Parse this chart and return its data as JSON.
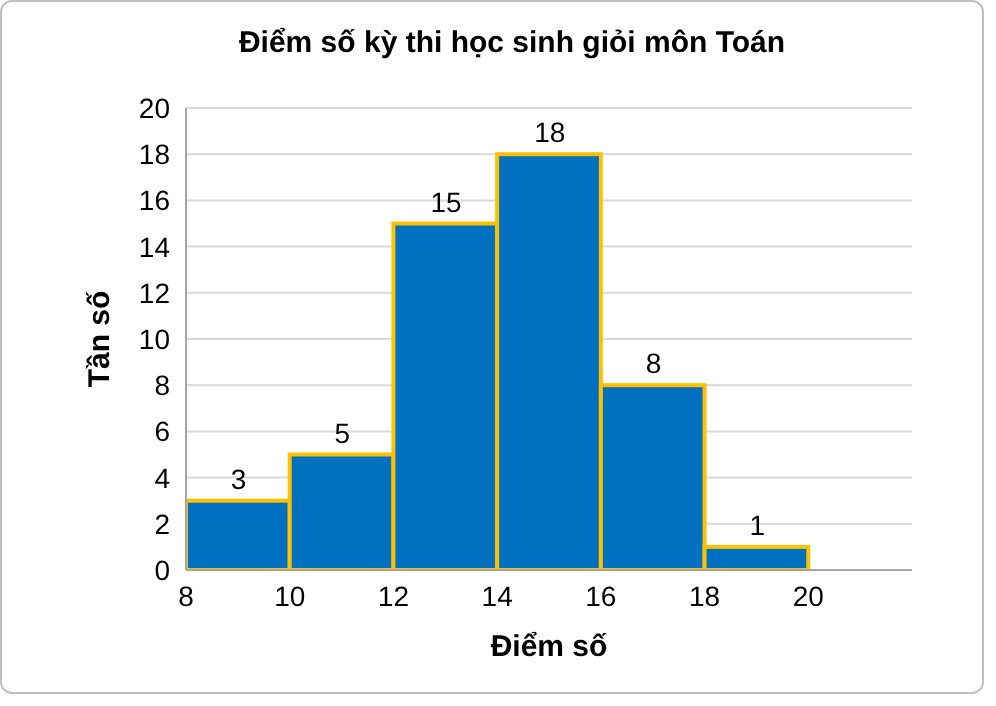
{
  "chart_data": {
    "type": "histogram",
    "title": "Điểm số kỳ thi học sinh giỏi môn Toán",
    "xlabel": "Điểm số",
    "ylabel": "Tần số",
    "bins": [
      8,
      10,
      12,
      14,
      16,
      18,
      20
    ],
    "values": [
      3,
      5,
      15,
      18,
      8,
      1
    ],
    "color": "#0070c0",
    "xlim": [
      8,
      22
    ],
    "xticks": [
      8,
      10,
      12,
      14,
      16,
      18,
      20
    ],
    "ylim": [
      0,
      20
    ],
    "yticks": [
      0,
      2,
      4,
      6,
      8,
      10,
      12,
      14,
      16,
      18,
      20
    ],
    "grid": "y",
    "data_labels": true
  }
}
